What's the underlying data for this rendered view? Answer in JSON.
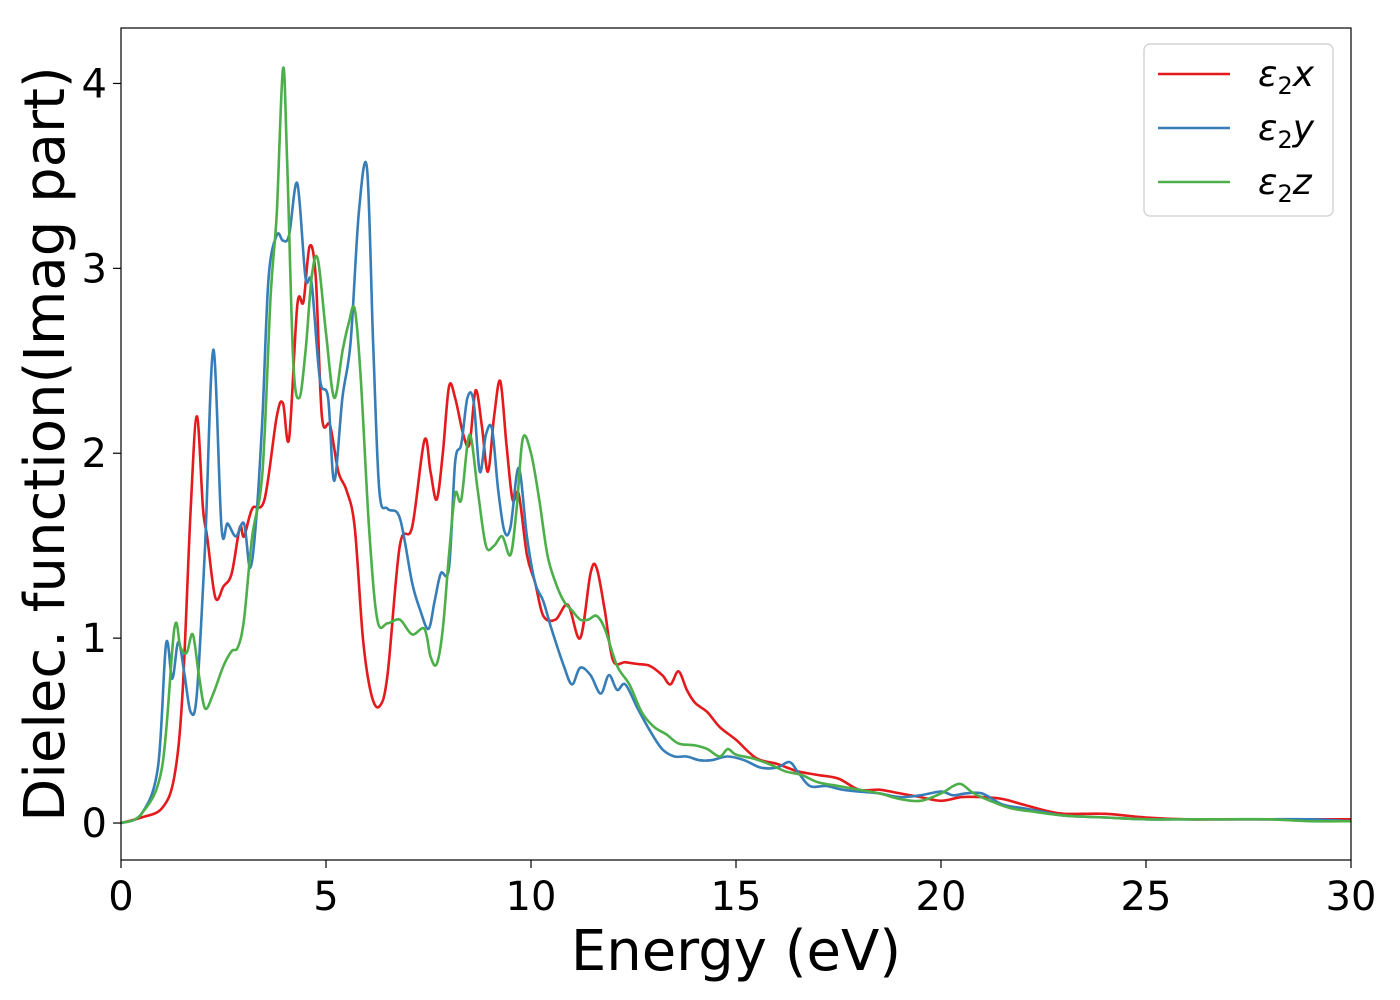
{
  "chart_data": {
    "type": "line",
    "xlabel": "Energy (eV)",
    "ylabel": "Dielec. function(Imag part)",
    "xlim": [
      0,
      30
    ],
    "ylim": [
      -0.2,
      4.3
    ],
    "xticks": [
      0,
      5,
      10,
      15,
      20,
      25,
      30
    ],
    "xtick_labels": [
      "0",
      "5",
      "10",
      "15",
      "20",
      "25",
      "30"
    ],
    "yticks": [
      0,
      1,
      2,
      3,
      4
    ],
    "ytick_labels": [
      "0",
      "1",
      "2",
      "3",
      "4"
    ],
    "grid": false,
    "legend_position": "top-right",
    "series": [
      {
        "name": "ε2x",
        "legend": {
          "symbol": "ε",
          "sub": "2",
          "axis": "x"
        },
        "color": "#e41a1c",
        "x": [
          0,
          0.5,
          1.0,
          1.3,
          1.5,
          1.7,
          1.85,
          2.0,
          2.1,
          2.3,
          2.5,
          2.7,
          2.9,
          3.0,
          3.2,
          3.5,
          3.8,
          3.95,
          4.1,
          4.3,
          4.45,
          4.6,
          4.75,
          4.9,
          5.1,
          5.3,
          5.5,
          5.7,
          5.9,
          6.1,
          6.3,
          6.5,
          6.8,
          7.1,
          7.4,
          7.55,
          7.7,
          7.85,
          8.0,
          8.15,
          8.35,
          8.5,
          8.65,
          8.8,
          8.95,
          9.1,
          9.25,
          9.4,
          9.55,
          9.7,
          9.9,
          10.1,
          10.3,
          10.6,
          10.9,
          11.2,
          11.45,
          11.6,
          11.8,
          12.0,
          12.3,
          12.6,
          12.9,
          13.2,
          13.4,
          13.6,
          13.8,
          14.0,
          14.3,
          14.6,
          15.0,
          15.5,
          16.0,
          16.5,
          17.0,
          17.5,
          18.0,
          18.5,
          19.0,
          19.5,
          20.0,
          20.5,
          21.0,
          21.5,
          22.0,
          22.5,
          23.0,
          24.0,
          25.0,
          26.0,
          27.0,
          28.0,
          29.0,
          30.0
        ],
        "values": [
          0,
          0.03,
          0.08,
          0.25,
          0.7,
          1.7,
          2.2,
          1.7,
          1.55,
          1.22,
          1.28,
          1.35,
          1.6,
          1.55,
          1.7,
          1.75,
          2.2,
          2.27,
          2.08,
          2.8,
          2.82,
          3.12,
          2.95,
          2.2,
          2.15,
          1.9,
          1.8,
          1.6,
          1.0,
          0.7,
          0.63,
          0.8,
          1.5,
          1.6,
          2.07,
          1.9,
          1.75,
          2.0,
          2.36,
          2.3,
          2.1,
          2.05,
          2.34,
          2.15,
          1.9,
          2.2,
          2.39,
          2.05,
          1.75,
          1.78,
          1.45,
          1.3,
          1.12,
          1.1,
          1.18,
          1.0,
          1.35,
          1.38,
          1.15,
          0.88,
          0.87,
          0.86,
          0.85,
          0.8,
          0.75,
          0.82,
          0.72,
          0.65,
          0.6,
          0.52,
          0.45,
          0.35,
          0.32,
          0.28,
          0.26,
          0.24,
          0.18,
          0.18,
          0.16,
          0.14,
          0.12,
          0.14,
          0.14,
          0.13,
          0.1,
          0.07,
          0.05,
          0.05,
          0.03,
          0.02,
          0.02,
          0.02,
          0.02,
          0.02
        ]
      },
      {
        "name": "ε2y",
        "legend": {
          "symbol": "ε",
          "sub": "2",
          "axis": "y"
        },
        "color": "#377eb8",
        "x": [
          0,
          0.5,
          0.9,
          1.1,
          1.25,
          1.4,
          1.55,
          1.7,
          1.85,
          2.05,
          2.25,
          2.45,
          2.6,
          2.8,
          3.0,
          3.15,
          3.3,
          3.45,
          3.6,
          3.8,
          3.95,
          4.1,
          4.3,
          4.5,
          4.65,
          4.85,
          5.05,
          5.2,
          5.4,
          5.6,
          5.8,
          6.0,
          6.15,
          6.3,
          6.5,
          6.8,
          7.1,
          7.3,
          7.5,
          7.65,
          7.8,
          8.0,
          8.15,
          8.3,
          8.45,
          8.6,
          8.75,
          8.9,
          9.05,
          9.2,
          9.35,
          9.5,
          9.7,
          9.9,
          10.1,
          10.3,
          10.5,
          10.8,
          11.0,
          11.2,
          11.45,
          11.7,
          11.9,
          12.1,
          12.3,
          12.6,
          12.9,
          13.2,
          13.5,
          13.8,
          14.1,
          14.4,
          14.8,
          15.2,
          15.6,
          16.0,
          16.3,
          16.5,
          16.8,
          17.2,
          17.6,
          18.0,
          18.5,
          19.0,
          19.5,
          20.0,
          20.3,
          20.6,
          21.0,
          21.5,
          22.0,
          22.5,
          23.0,
          24.0,
          25.0,
          26.0,
          27.0,
          28.0,
          29.0,
          30.0
        ],
        "values": [
          0,
          0.05,
          0.3,
          0.97,
          0.78,
          0.98,
          0.8,
          0.6,
          0.7,
          1.5,
          2.56,
          1.6,
          1.62,
          1.55,
          1.62,
          1.38,
          1.65,
          2.2,
          2.95,
          3.18,
          3.15,
          3.18,
          3.46,
          2.95,
          2.92,
          2.4,
          2.3,
          1.85,
          2.3,
          2.6,
          3.3,
          3.54,
          2.6,
          1.8,
          1.7,
          1.65,
          1.3,
          1.15,
          1.05,
          1.2,
          1.35,
          1.38,
          1.95,
          2.05,
          2.3,
          2.28,
          1.9,
          2.1,
          2.13,
          1.8,
          1.58,
          1.6,
          1.92,
          1.55,
          1.3,
          1.2,
          1.05,
          0.85,
          0.75,
          0.84,
          0.8,
          0.7,
          0.8,
          0.72,
          0.75,
          0.62,
          0.5,
          0.4,
          0.36,
          0.36,
          0.34,
          0.34,
          0.36,
          0.34,
          0.3,
          0.3,
          0.33,
          0.28,
          0.2,
          0.2,
          0.18,
          0.17,
          0.16,
          0.14,
          0.15,
          0.17,
          0.15,
          0.16,
          0.16,
          0.1,
          0.08,
          0.06,
          0.04,
          0.03,
          0.02,
          0.02,
          0.02,
          0.02,
          0.02,
          0.01
        ]
      },
      {
        "name": "ε2z",
        "legend": {
          "symbol": "ε",
          "sub": "2",
          "axis": "z"
        },
        "color": "#4daf4a",
        "x": [
          0,
          0.5,
          1.0,
          1.3,
          1.45,
          1.6,
          1.75,
          1.9,
          2.05,
          2.25,
          2.5,
          2.7,
          2.85,
          3.0,
          3.2,
          3.45,
          3.65,
          3.8,
          3.95,
          4.05,
          4.2,
          4.35,
          4.5,
          4.65,
          4.8,
          5.0,
          5.2,
          5.4,
          5.55,
          5.7,
          5.85,
          6.05,
          6.25,
          6.5,
          6.8,
          7.1,
          7.4,
          7.55,
          7.7,
          7.85,
          8.0,
          8.15,
          8.3,
          8.5,
          8.7,
          8.9,
          9.1,
          9.3,
          9.5,
          9.65,
          9.8,
          10.0,
          10.2,
          10.4,
          10.6,
          10.8,
          11.0,
          11.2,
          11.4,
          11.6,
          11.8,
          12.1,
          12.4,
          12.7,
          13.0,
          13.3,
          13.6,
          14.0,
          14.3,
          14.6,
          14.8,
          15.0,
          15.4,
          15.8,
          16.2,
          16.6,
          17.0,
          17.5,
          18.0,
          18.5,
          19.0,
          19.5,
          20.0,
          20.3,
          20.5,
          20.8,
          21.2,
          21.7,
          22.3,
          23.0,
          24.0,
          25.0,
          26.0,
          27.0,
          28.0,
          29.0,
          30.0
        ],
        "values": [
          0,
          0.05,
          0.3,
          1.05,
          0.95,
          0.92,
          1.02,
          0.8,
          0.62,
          0.7,
          0.85,
          0.93,
          0.95,
          1.1,
          1.55,
          1.9,
          2.85,
          3.3,
          4.08,
          3.6,
          2.5,
          2.3,
          2.55,
          2.95,
          3.05,
          2.65,
          2.3,
          2.55,
          2.7,
          2.78,
          2.4,
          1.6,
          1.1,
          1.08,
          1.1,
          1.02,
          1.05,
          0.9,
          0.86,
          1.05,
          1.45,
          1.78,
          1.75,
          2.1,
          1.8,
          1.5,
          1.5,
          1.55,
          1.45,
          1.7,
          2.08,
          2.0,
          1.75,
          1.45,
          1.3,
          1.2,
          1.15,
          1.1,
          1.1,
          1.12,
          1.05,
          0.85,
          0.75,
          0.6,
          0.52,
          0.48,
          0.43,
          0.42,
          0.4,
          0.36,
          0.4,
          0.37,
          0.35,
          0.32,
          0.28,
          0.26,
          0.22,
          0.2,
          0.18,
          0.16,
          0.13,
          0.12,
          0.16,
          0.2,
          0.21,
          0.16,
          0.12,
          0.08,
          0.06,
          0.04,
          0.03,
          0.02,
          0.02,
          0.02,
          0.02,
          0.01,
          0.01
        ]
      }
    ]
  }
}
